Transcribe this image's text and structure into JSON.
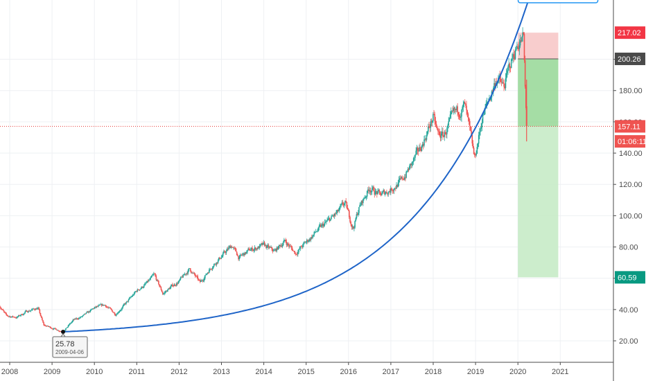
{
  "chart_data": {
    "type": "candlestick",
    "title": "",
    "y_axis": {
      "ticks": [
        "20.00",
        "40.00",
        "60.00",
        "80.00",
        "100.00",
        "120.00",
        "140.00",
        "160.00",
        "180.00",
        "200.00"
      ],
      "range": [
        8,
        222
      ],
      "position": "right"
    },
    "x_axis": {
      "ticks": [
        "2008",
        "2009",
        "2010",
        "2011",
        "2012",
        "2013",
        "2014",
        "2015",
        "2016",
        "2017",
        "2018",
        "2019",
        "2020",
        "2021"
      ],
      "range": [
        "2007-10-01",
        "2021-12-31"
      ]
    },
    "grid": true,
    "price_path": [
      {
        "date": "2007-10-01",
        "value": 43
      },
      {
        "date": "2007-12-01",
        "value": 36
      },
      {
        "date": "2008-03-01",
        "value": 35
      },
      {
        "date": "2008-06-01",
        "value": 39
      },
      {
        "date": "2008-09-01",
        "value": 41
      },
      {
        "date": "2008-10-20",
        "value": 30
      },
      {
        "date": "2008-12-01",
        "value": 29
      },
      {
        "date": "2009-04-06",
        "value": 25.78
      },
      {
        "date": "2009-07-01",
        "value": 33
      },
      {
        "date": "2009-10-01",
        "value": 36
      },
      {
        "date": "2010-01-01",
        "value": 41
      },
      {
        "date": "2010-04-01",
        "value": 43
      },
      {
        "date": "2010-07-01",
        "value": 37
      },
      {
        "date": "2010-10-01",
        "value": 44
      },
      {
        "date": "2011-01-01",
        "value": 52
      },
      {
        "date": "2011-04-01",
        "value": 57
      },
      {
        "date": "2011-06-01",
        "value": 62
      },
      {
        "date": "2011-08-15",
        "value": 50
      },
      {
        "date": "2011-11-01",
        "value": 55
      },
      {
        "date": "2012-01-01",
        "value": 58
      },
      {
        "date": "2012-04-01",
        "value": 66
      },
      {
        "date": "2012-07-01",
        "value": 57
      },
      {
        "date": "2012-10-01",
        "value": 67
      },
      {
        "date": "2013-01-01",
        "value": 74
      },
      {
        "date": "2013-04-01",
        "value": 81
      },
      {
        "date": "2013-06-01",
        "value": 73
      },
      {
        "date": "2013-09-01",
        "value": 78
      },
      {
        "date": "2014-01-01",
        "value": 81
      },
      {
        "date": "2014-04-01",
        "value": 77
      },
      {
        "date": "2014-07-01",
        "value": 84
      },
      {
        "date": "2014-10-01",
        "value": 76
      },
      {
        "date": "2015-01-01",
        "value": 83
      },
      {
        "date": "2015-04-01",
        "value": 90
      },
      {
        "date": "2015-07-01",
        "value": 96
      },
      {
        "date": "2015-10-01",
        "value": 102
      },
      {
        "date": "2015-12-01",
        "value": 108
      },
      {
        "date": "2016-02-10",
        "value": 92
      },
      {
        "date": "2016-04-01",
        "value": 105
      },
      {
        "date": "2016-07-01",
        "value": 118
      },
      {
        "date": "2016-10-01",
        "value": 113
      },
      {
        "date": "2017-01-01",
        "value": 117
      },
      {
        "date": "2017-04-01",
        "value": 122
      },
      {
        "date": "2017-07-01",
        "value": 133
      },
      {
        "date": "2017-10-01",
        "value": 146
      },
      {
        "date": "2018-01-01",
        "value": 163
      },
      {
        "date": "2018-02-10",
        "value": 152
      },
      {
        "date": "2018-04-01",
        "value": 151
      },
      {
        "date": "2018-07-01",
        "value": 165
      },
      {
        "date": "2018-10-01",
        "value": 170
      },
      {
        "date": "2018-12-24",
        "value": 136
      },
      {
        "date": "2019-03-01",
        "value": 163
      },
      {
        "date": "2019-05-01",
        "value": 175
      },
      {
        "date": "2019-07-01",
        "value": 188
      },
      {
        "date": "2019-09-01",
        "value": 182
      },
      {
        "date": "2019-11-01",
        "value": 198
      },
      {
        "date": "2019-12-31",
        "value": 210
      },
      {
        "date": "2020-02-19",
        "value": 214
      },
      {
        "date": "2020-03-01",
        "value": 185
      },
      {
        "date": "2020-03-16",
        "value": 157.11
      }
    ],
    "trend_curve": {
      "start": {
        "date": "2009-04-06",
        "value": 25.78
      },
      "end": {
        "date": "2020-04-20",
        "value": 242
      },
      "color": "#1e64c8"
    },
    "low_annotation": {
      "value": "25.78",
      "date": "2009-04-06"
    },
    "position_tool": {
      "entry": 200.26,
      "stop": 217.02,
      "target": 60.59,
      "start_date": "2020-01-01",
      "end_date": "2020-12-15",
      "stop_color": "#f7c4c4",
      "target_top_color": "#9bd99b",
      "target_color": "#c7ebc7"
    },
    "current_price": 157.11,
    "badges": [
      {
        "label": "217.02",
        "value": 217.02,
        "color": "#f23645"
      },
      {
        "label": "200.26",
        "value": 200.26,
        "color": "#4a4a4a"
      },
      {
        "label": "157.11",
        "value": 157.11,
        "color": "#ef5350"
      },
      {
        "label": "01:06:11",
        "value": 147.5,
        "color": "#ef5350"
      },
      {
        "label": "60.59",
        "value": 60.59,
        "color": "#089981"
      }
    ],
    "colors": {
      "up": "#26a69a",
      "down": "#ef5350",
      "grid": "#eef0f3",
      "axis": "#4a4a4a",
      "curve": "#1e64c8"
    }
  }
}
